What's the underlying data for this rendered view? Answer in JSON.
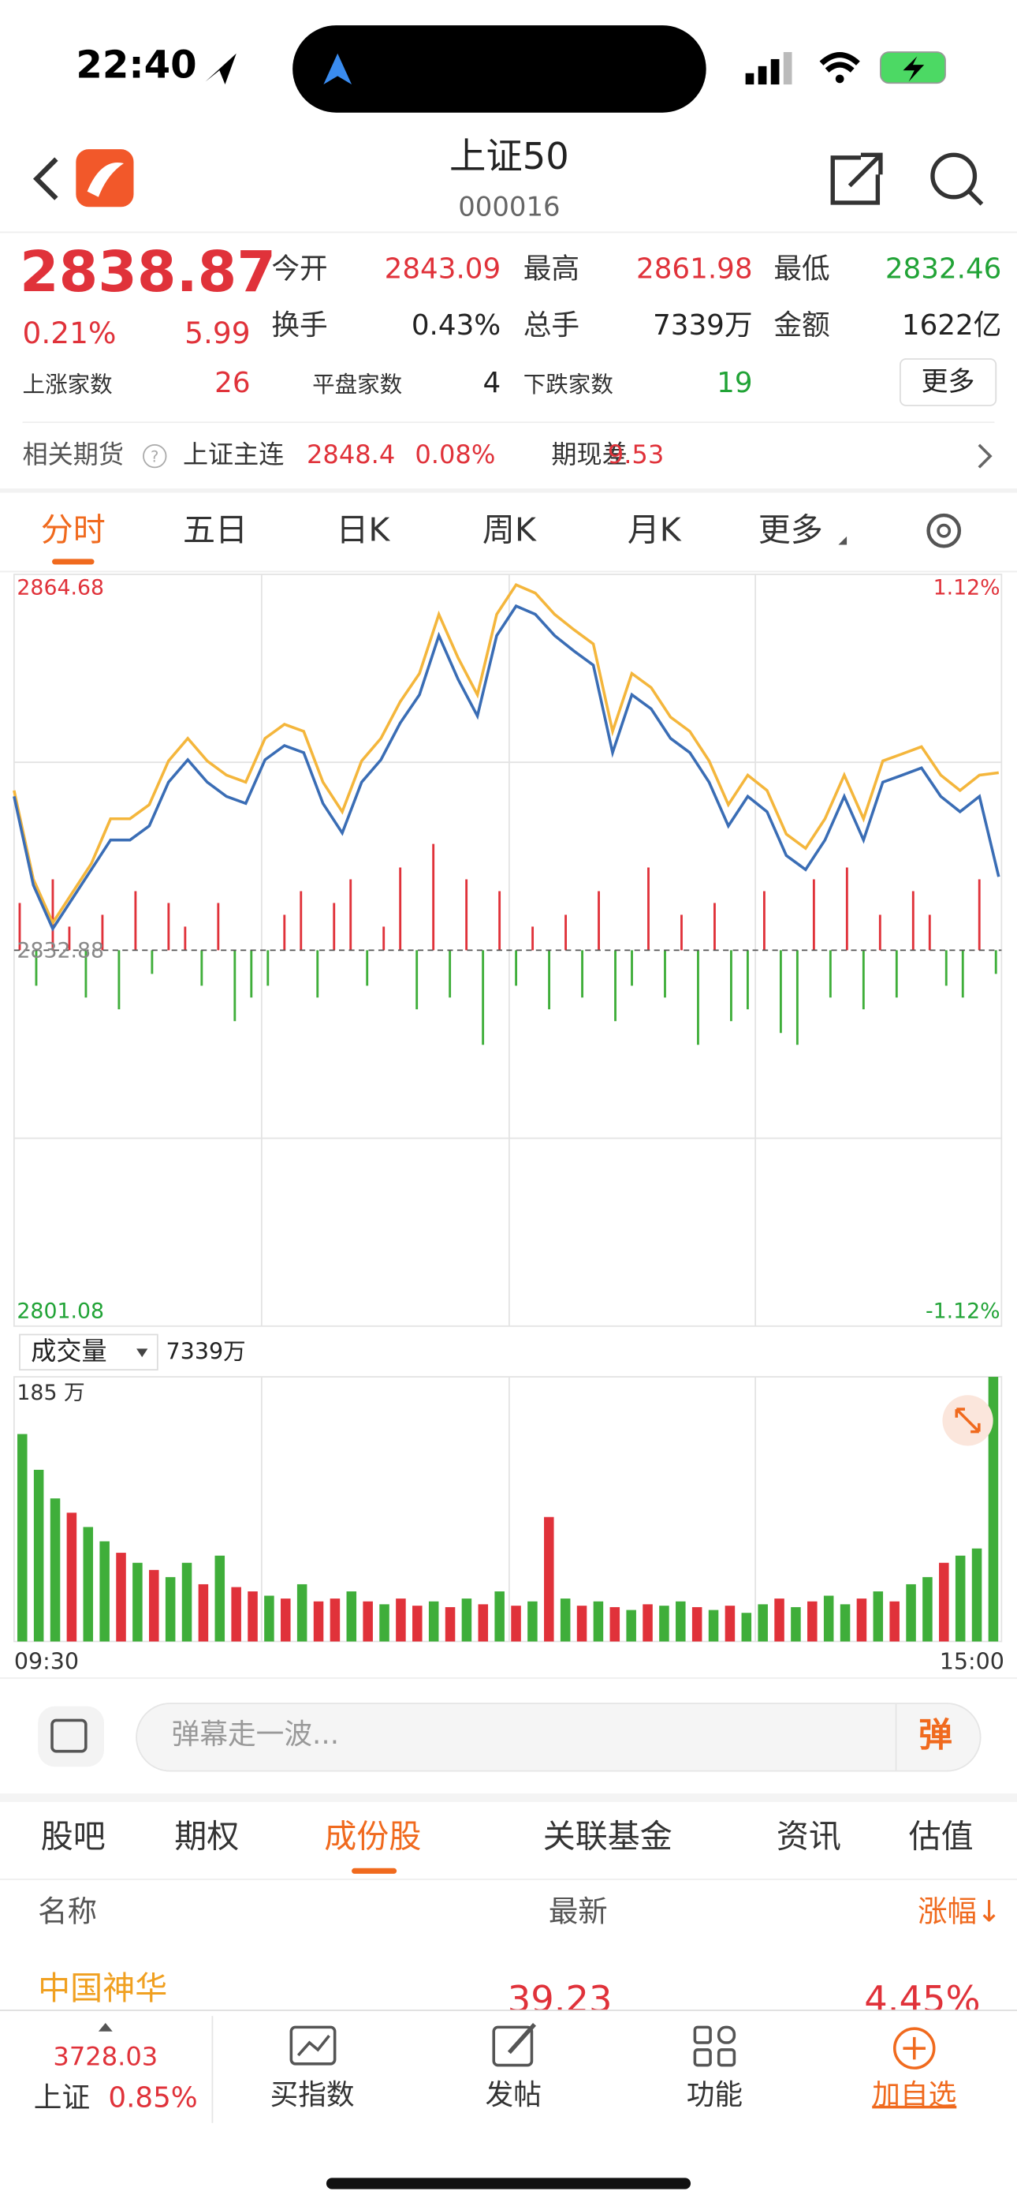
{
  "status": {
    "time": "22:40"
  },
  "header": {
    "title": "上证50",
    "code": "000016"
  },
  "quote": {
    "price": "2838.87",
    "pct": "0.21%",
    "change": "5.99",
    "fields": [
      {
        "label": "今开",
        "value": "2843.09"
      },
      {
        "label": "最高",
        "value": "2861.98"
      },
      {
        "label": "最低",
        "value": "2832.46"
      },
      {
        "label": "换手",
        "value": "0.43%"
      },
      {
        "label": "总手",
        "value": "7339万"
      },
      {
        "label": "金额",
        "value": "1622亿"
      }
    ],
    "breadth": [
      {
        "label": "上涨家数",
        "value": "26"
      },
      {
        "label": "平盘家数",
        "value": "4"
      },
      {
        "label": "下跌家数",
        "value": "19"
      }
    ],
    "more": "更多"
  },
  "futures": {
    "label": "相关期货",
    "name": "上证主连",
    "price": "2848.4",
    "pct": "0.08%",
    "basis_label": "期现差",
    "basis": "9.53"
  },
  "tabs": [
    "分时",
    "五日",
    "日K",
    "周K",
    "月K",
    "更多"
  ],
  "chart_data": [
    {
      "type": "line",
      "ylim": [
        2801.08,
        2864.68
      ],
      "yticks": [
        2801.08,
        2832.88,
        2864.68
      ],
      "y2lim": [
        -1.12,
        1.12
      ],
      "y2ticks": [
        {
          "value": -1.12,
          "label": "-1.12%"
        },
        {
          "value": 1.12,
          "label": "1.12%"
        }
      ],
      "series": [
        {
          "color": "#f4b63c",
          "values": [
            2846.4,
            2838.9,
            2835.2,
            2837.7,
            2840.2,
            2844.0,
            2844.0,
            2845.2,
            2848.9,
            2850.8,
            2848.9,
            2847.7,
            2847.1,
            2850.8,
            2852.0,
            2851.4,
            2847.1,
            2844.6,
            2848.9,
            2850.8,
            2853.9,
            2856.3,
            2861.3,
            2857.6,
            2854.5,
            2861.3,
            2863.8,
            2863.1,
            2861.3,
            2860.0,
            2858.8,
            2851.4,
            2856.3,
            2855.1,
            2852.6,
            2851.4,
            2848.9,
            2845.2,
            2847.7,
            2846.4,
            2842.7,
            2841.5,
            2844.0,
            2847.7,
            2844.0,
            2848.9,
            2849.5,
            2850.1,
            2847.7,
            2846.4,
            2847.7,
            2847.9
          ]
        },
        {
          "color": "#3a6db5",
          "values": [
            2845.9,
            2838.4,
            2834.7,
            2837.2,
            2839.7,
            2842.2,
            2842.2,
            2843.4,
            2847.1,
            2849.0,
            2847.1,
            2845.9,
            2845.3,
            2849.0,
            2850.2,
            2849.6,
            2845.3,
            2842.8,
            2847.1,
            2849.0,
            2852.1,
            2854.5,
            2859.5,
            2855.8,
            2852.7,
            2859.5,
            2862.0,
            2861.3,
            2859.5,
            2858.2,
            2857.0,
            2849.6,
            2854.5,
            2853.3,
            2850.8,
            2849.6,
            2847.1,
            2843.4,
            2845.9,
            2844.6,
            2840.9,
            2839.7,
            2842.2,
            2845.9,
            2842.2,
            2847.1,
            2847.7,
            2848.3,
            2845.9,
            2844.6,
            2845.9,
            2839.1
          ]
        }
      ],
      "diff_bars": [
        4,
        -3,
        6,
        2,
        -4,
        3,
        -5,
        5,
        -2,
        4,
        2,
        -3,
        4,
        -6,
        -4,
        -3,
        3,
        5,
        -4,
        4,
        6,
        -3,
        2,
        7,
        -5,
        9,
        -4,
        6,
        -8,
        5,
        -3,
        2,
        -5,
        3,
        -4,
        5,
        -6,
        -3,
        7,
        -4,
        3,
        -8,
        4,
        -6,
        -5,
        5,
        -7,
        -8,
        6,
        -4,
        7,
        -5,
        3,
        -4,
        5,
        3,
        -3,
        -4,
        6,
        -2
      ],
      "up_color": "#e0323a",
      "down_color": "#3fae3a"
    },
    {
      "type": "bar",
      "title": "成交量",
      "total": "7339万",
      "ylim": [
        0,
        185
      ],
      "yticks": [
        {
          "value": 185,
          "label": "185 万"
        }
      ],
      "x_labels": [
        "09:30",
        "15:00"
      ],
      "values": [
        145,
        120,
        100,
        90,
        80,
        70,
        62,
        55,
        50,
        45,
        55,
        40,
        60,
        38,
        35,
        32,
        30,
        40,
        28,
        30,
        35,
        28,
        26,
        30,
        25,
        28,
        24,
        30,
        26,
        35,
        25,
        28,
        87,
        30,
        25,
        28,
        24,
        22,
        26,
        25,
        28,
        24,
        22,
        25,
        20,
        26,
        30,
        24,
        28,
        32,
        26,
        30,
        35,
        28,
        40,
        45,
        55,
        60,
        65,
        185
      ],
      "colors": [
        "#3fae3a",
        "#3fae3a",
        "#3fae3a",
        "#e0323a",
        "#3fae3a",
        "#3fae3a",
        "#e0323a",
        "#3fae3a",
        "#e0323a",
        "#3fae3a",
        "#3fae3a",
        "#e0323a",
        "#3fae3a",
        "#e0323a",
        "#e0323a",
        "#3fae3a",
        "#e0323a",
        "#3fae3a",
        "#e0323a",
        "#e0323a",
        "#3fae3a",
        "#e0323a",
        "#3fae3a",
        "#e0323a",
        "#e0323a",
        "#3fae3a",
        "#e0323a",
        "#3fae3a",
        "#e0323a",
        "#3fae3a",
        "#e0323a",
        "#3fae3a",
        "#e0323a",
        "#3fae3a",
        "#e0323a",
        "#3fae3a",
        "#e0323a",
        "#3fae3a",
        "#e0323a",
        "#3fae3a",
        "#3fae3a",
        "#e0323a",
        "#3fae3a",
        "#e0323a",
        "#3fae3a",
        "#3fae3a",
        "#e0323a",
        "#3fae3a",
        "#e0323a",
        "#3fae3a",
        "#3fae3a",
        "#e0323a",
        "#3fae3a",
        "#e0323a",
        "#3fae3a",
        "#3fae3a",
        "#e0323a",
        "#3fae3a",
        "#3fae3a",
        "#3fae3a"
      ]
    }
  ],
  "comment": {
    "placeholder": "弹幕走一波...",
    "button": "弹"
  },
  "subtabs": [
    "股吧",
    "期权",
    "成份股",
    "关联基金",
    "资讯",
    "估值"
  ],
  "table": {
    "headers": [
      "名称",
      "最新",
      "涨幅↓"
    ],
    "rows": [
      [
        "中国神华",
        "39.23",
        "4.45%"
      ]
    ]
  },
  "bottom_bar": {
    "index_value": "3728.03",
    "index_name": "上证",
    "index_pct": "0.85%",
    "buttons": [
      "买指数",
      "发帖",
      "功能",
      "加自选"
    ]
  }
}
